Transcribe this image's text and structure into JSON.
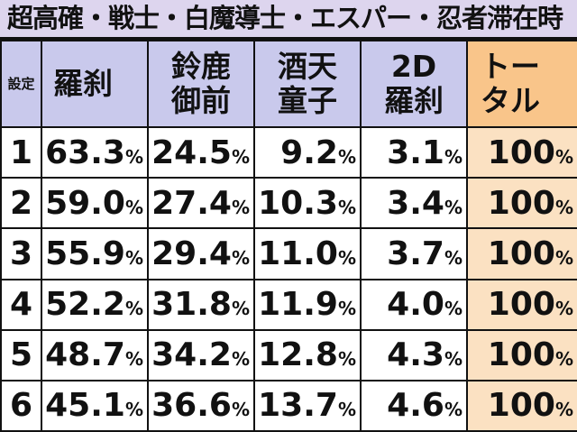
{
  "title": "超高確・戦士・白魔導士・エスパー・忍者滞在時",
  "headers": {
    "setting": "設定",
    "col1": "羅刹",
    "col2": "鈴鹿御前",
    "col3": "酒天童子",
    "col4": "2D羅刹",
    "total": "トータル"
  },
  "header_lines": {
    "col2": [
      "鈴鹿",
      "御前"
    ],
    "col3": [
      "酒天",
      "童子"
    ],
    "col4": [
      "2D",
      "羅刹"
    ],
    "total": [
      "トー",
      "タル"
    ]
  },
  "unit": "%",
  "rows": [
    {
      "setting": "1",
      "col1": "63.3",
      "col2": "24.5",
      "col3": "9.2",
      "col4": "3.1",
      "total": "100"
    },
    {
      "setting": "2",
      "col1": "59.0",
      "col2": "27.4",
      "col3": "10.3",
      "col4": "3.4",
      "total": "100"
    },
    {
      "setting": "3",
      "col1": "55.9",
      "col2": "29.4",
      "col3": "11.0",
      "col4": "3.7",
      "total": "100"
    },
    {
      "setting": "4",
      "col1": "52.2",
      "col2": "31.8",
      "col3": "11.9",
      "col4": "4.0",
      "total": "100"
    },
    {
      "setting": "5",
      "col1": "48.7",
      "col2": "34.2",
      "col3": "12.8",
      "col4": "4.3",
      "total": "100"
    },
    {
      "setting": "6",
      "col1": "45.1",
      "col2": "36.6",
      "col3": "13.7",
      "col4": "4.6",
      "total": "100"
    }
  ],
  "colors": {
    "title_bg": "#ddd5ee",
    "header_bg": "#c9c9ec",
    "total_header_bg": "#f9c58a",
    "total_cell_bg": "#fbe1c2"
  }
}
